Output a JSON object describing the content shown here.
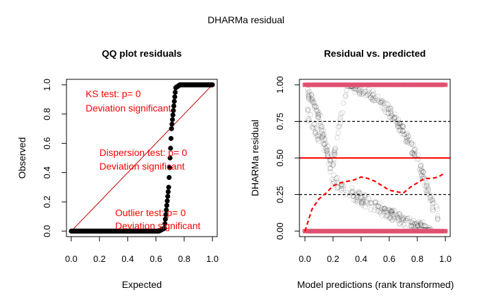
{
  "figure_title": "DHARMa residual",
  "chart_data": [
    {
      "type": "scatter",
      "title": "QQ plot residuals",
      "xlabel": "Expected",
      "ylabel": "Observed",
      "xlim": [
        0,
        1
      ],
      "ylim": [
        0,
        1
      ],
      "xticks": [
        "0.0",
        "0.2",
        "0.4",
        "0.6",
        "0.8",
        "1.0"
      ],
      "yticks": [
        "0.0",
        "0.2",
        "0.4",
        "0.6",
        "0.8",
        "1.0"
      ],
      "annotations": [
        {
          "lines": [
            "KS test: p= 0",
            "Deviation significant"
          ]
        },
        {
          "lines": [
            "Dispersion test: p= 0",
            "Deviation significant"
          ]
        },
        {
          "lines": [
            "Outlier test: p= 0",
            "Deviation significant"
          ]
        }
      ],
      "reference_line": {
        "from": [
          0,
          0
        ],
        "to": [
          1,
          1
        ],
        "color": "#c00000"
      },
      "qq_points": [
        [
          0,
          0
        ],
        [
          0.62,
          0
        ],
        [
          0.66,
          0.02
        ],
        [
          0.69,
          0.3
        ],
        [
          0.71,
          0.7
        ],
        [
          0.74,
          0.98
        ],
        [
          0.77,
          1.0
        ],
        [
          1,
          1.0
        ]
      ],
      "point_color": "#000000"
    },
    {
      "type": "scatter",
      "title": "Residual vs. predicted",
      "xlabel": "Model predictions (rank transformed)",
      "ylabel": "DHARMa residual",
      "xlim": [
        0,
        1
      ],
      "ylim": [
        0,
        1
      ],
      "xticks": [
        "0.0",
        "0.2",
        "0.4",
        "0.6",
        "0.8",
        "1.0"
      ],
      "yticks": [
        "0.00",
        "0.25",
        "0.50",
        "0.75",
        "1.00"
      ],
      "reference_lines": [
        {
          "y": 0.25,
          "style": "dashed",
          "color": "#000000"
        },
        {
          "y": 0.5,
          "style": "solid",
          "color": "#ff0000"
        },
        {
          "y": 0.75,
          "style": "dashed",
          "color": "#000000"
        }
      ],
      "outlier_rows": [
        {
          "y": 1.0,
          "x_range": [
            0,
            1
          ],
          "color": "#e05070"
        },
        {
          "y": 0.0,
          "x_range": [
            0,
            1
          ],
          "color": "#e05070"
        }
      ],
      "band_upper": {
        "x": [
          0.02,
          0.1,
          0.2,
          0.3,
          0.4,
          0.5,
          0.6,
          0.7,
          0.8,
          0.85,
          0.9,
          0.95
        ],
        "y": [
          0.8,
          0.65,
          0.48,
          1.0,
          0.97,
          0.92,
          0.82,
          0.68,
          0.5,
          0.35,
          0.2,
          0.1
        ]
      },
      "band_lower": {
        "x": [
          0.02,
          0.1,
          0.2,
          0.3,
          0.4,
          0.5,
          0.6,
          0.7,
          0.8,
          0.9
        ],
        "y": [
          0.95,
          0.8,
          0.35,
          0.28,
          0.22,
          0.17,
          0.12,
          0.07,
          0.03,
          0.01
        ]
      },
      "quantile_curve": {
        "color": "#ff0000",
        "style": "dashed",
        "x": [
          0.0,
          0.05,
          0.1,
          0.15,
          0.2,
          0.25,
          0.3,
          0.35,
          0.4,
          0.45,
          0.5,
          0.55,
          0.6,
          0.65,
          0.7,
          0.75,
          0.8,
          0.85,
          0.9,
          0.95,
          1.0
        ],
        "y": [
          0.0,
          0.15,
          0.22,
          0.26,
          0.31,
          0.33,
          0.34,
          0.35,
          0.37,
          0.36,
          0.34,
          0.31,
          0.28,
          0.27,
          0.26,
          0.3,
          0.33,
          0.36,
          0.36,
          0.37,
          0.4
        ]
      }
    }
  ]
}
